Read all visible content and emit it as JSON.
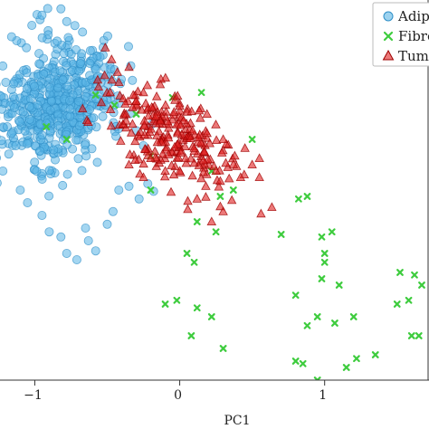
{
  "chart_data": {
    "type": "scatter",
    "xlabel": "PC1",
    "ylabel": "",
    "xlim": [
      -1.24,
      1.72
    ],
    "ylim": [
      -1.55,
      1.45
    ],
    "grid": false,
    "legend": {
      "placement": "top-right"
    },
    "x_ticks": [
      {
        "value": -1,
        "label": "−1"
      },
      {
        "value": 0,
        "label": "0"
      },
      {
        "value": 1,
        "label": "1"
      }
    ],
    "series": [
      {
        "name": "Adipo",
        "marker": "circle",
        "color": "#5ab4e5",
        "edge": "#2f8fc7",
        "center": [
          -0.85,
          0.62
        ],
        "spread": [
          0.2,
          0.26
        ],
        "tilt": -0.5,
        "count": 520,
        "points": [
          [
            -1.16,
            1.16
          ],
          [
            -1.02,
            1.25
          ],
          [
            -0.95,
            1.33
          ],
          [
            -0.82,
            1.38
          ],
          [
            -0.78,
            1.28
          ],
          [
            -1.2,
            0.8
          ],
          [
            -1.19,
            0.45
          ],
          [
            -1.22,
            0.1
          ],
          [
            -1.1,
            -0.05
          ],
          [
            -1.05,
            -0.15
          ],
          [
            -0.9,
            -0.38
          ],
          [
            -0.82,
            -0.42
          ],
          [
            -0.78,
            -0.55
          ],
          [
            -0.71,
            -0.6
          ],
          [
            -0.63,
            -0.45
          ],
          [
            -0.58,
            -0.53
          ],
          [
            -0.5,
            -0.32
          ],
          [
            -0.46,
            -0.22
          ],
          [
            -0.42,
            -0.05
          ],
          [
            -0.35,
            -0.02
          ],
          [
            -0.28,
            -0.12
          ],
          [
            -0.22,
            0.0
          ],
          [
            -0.18,
            -0.06
          ],
          [
            -0.45,
            0.9
          ],
          [
            -0.55,
            1.0
          ],
          [
            -0.62,
            0.95
          ],
          [
            -0.3,
            0.42
          ],
          [
            -0.25,
            0.3
          ],
          [
            -0.65,
            -0.35
          ],
          [
            -0.95,
            -0.25
          ],
          [
            -1.13,
            0.3
          ],
          [
            -1.14,
            0.6
          ]
        ]
      },
      {
        "name": "Fibro",
        "marker": "x",
        "color": "#3ecc3e",
        "points": [
          [
            -0.92,
            0.45
          ],
          [
            -0.78,
            0.35
          ],
          [
            -0.58,
            0.7
          ],
          [
            -0.45,
            0.62
          ],
          [
            -0.3,
            0.55
          ],
          [
            -0.2,
            0.22
          ],
          [
            -0.05,
            0.68
          ],
          [
            0.15,
            0.72
          ],
          [
            0.22,
            0.1
          ],
          [
            0.28,
            -0.1
          ],
          [
            0.37,
            -0.05
          ],
          [
            0.5,
            0.35
          ],
          [
            0.12,
            -0.3
          ],
          [
            0.25,
            -0.38
          ],
          [
            0.05,
            -0.55
          ],
          [
            0.1,
            -0.62
          ],
          [
            -0.02,
            -0.92
          ],
          [
            0.12,
            -0.98
          ],
          [
            0.22,
            -1.05
          ],
          [
            0.08,
            -1.2
          ],
          [
            -0.1,
            -0.95
          ],
          [
            0.3,
            -1.3
          ],
          [
            -0.2,
            -0.05
          ],
          [
            0.82,
            -0.12
          ],
          [
            0.88,
            -0.1
          ],
          [
            0.7,
            -0.4
          ],
          [
            0.98,
            -0.42
          ],
          [
            1.05,
            -0.38
          ],
          [
            1.0,
            -0.55
          ],
          [
            1.0,
            -0.62
          ],
          [
            0.98,
            -0.75
          ],
          [
            1.1,
            -0.8
          ],
          [
            0.8,
            -0.88
          ],
          [
            0.95,
            -1.05
          ],
          [
            0.88,
            -1.12
          ],
          [
            1.07,
            -1.1
          ],
          [
            1.2,
            -1.05
          ],
          [
            1.22,
            -1.38
          ],
          [
            1.15,
            -1.45
          ],
          [
            0.85,
            -1.42
          ],
          [
            0.8,
            -1.4
          ],
          [
            1.5,
            -0.95
          ],
          [
            1.58,
            -0.92
          ],
          [
            1.6,
            -1.2
          ],
          [
            1.65,
            -1.2
          ],
          [
            1.67,
            -0.8
          ],
          [
            1.62,
            -0.72
          ],
          [
            1.52,
            -0.7
          ],
          [
            0.95,
            -1.55
          ],
          [
            1.35,
            -1.35
          ]
        ]
      },
      {
        "name": "Tumo",
        "marker": "triangle",
        "color": "#e02020",
        "edge": "#9e0000",
        "center": [
          -0.05,
          0.38
        ],
        "spread": [
          0.26,
          0.14
        ],
        "tilt": -0.78,
        "count": 230,
        "points": [
          [
            -0.47,
            0.98
          ],
          [
            -0.43,
            0.88
          ],
          [
            -0.35,
            0.92
          ],
          [
            -0.25,
            0.72
          ],
          [
            -0.3,
            0.65
          ],
          [
            -0.48,
            0.72
          ],
          [
            -0.42,
            0.8
          ],
          [
            0.3,
            0.35
          ],
          [
            0.38,
            0.22
          ],
          [
            0.45,
            0.28
          ],
          [
            0.5,
            0.15
          ],
          [
            0.42,
            0.05
          ],
          [
            0.55,
            0.2
          ],
          [
            0.28,
            0.02
          ],
          [
            0.18,
            -0.02
          ],
          [
            0.12,
            -0.12
          ],
          [
            0.28,
            -0.18
          ],
          [
            0.3,
            -0.22
          ],
          [
            0.22,
            -0.3
          ],
          [
            0.0,
            0.1
          ],
          [
            -0.1,
            0.1
          ],
          [
            -0.2,
            0.2
          ],
          [
            -0.35,
            0.15
          ],
          [
            -0.25,
            0.05
          ],
          [
            0.1,
            0.28
          ],
          [
            0.55,
            0.05
          ]
        ]
      }
    ]
  }
}
